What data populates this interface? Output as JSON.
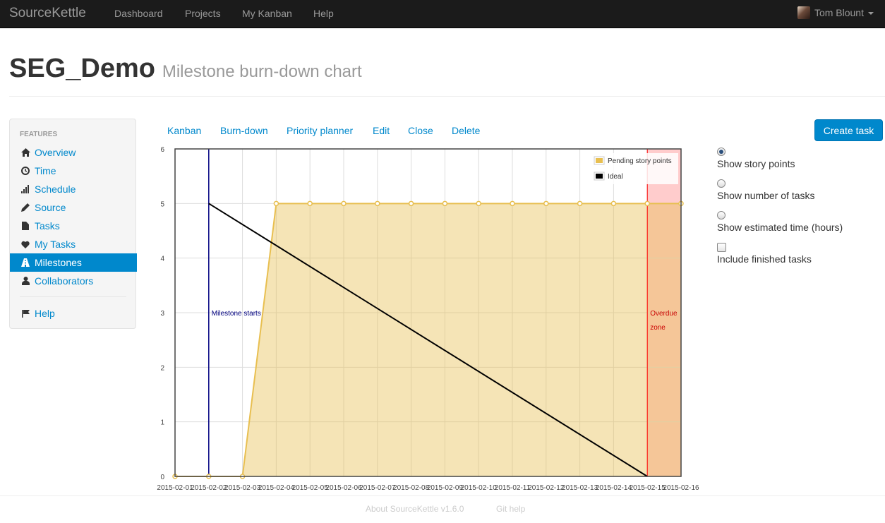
{
  "navbar": {
    "brand": "SourceKettle",
    "links": [
      "Dashboard",
      "Projects",
      "My Kanban",
      "Help"
    ],
    "user_name": "Tom Blount"
  },
  "page": {
    "project_name": "SEG_Demo",
    "subtitle": "Milestone burn-down chart"
  },
  "sidebar": {
    "header": "FEATURES",
    "items": [
      {
        "label": "Overview",
        "icon": "home-icon"
      },
      {
        "label": "Time",
        "icon": "clock-icon"
      },
      {
        "label": "Schedule",
        "icon": "signal-icon"
      },
      {
        "label": "Source",
        "icon": "pencil-icon"
      },
      {
        "label": "Tasks",
        "icon": "file-icon"
      },
      {
        "label": "My Tasks",
        "icon": "heart-icon"
      },
      {
        "label": "Milestones",
        "icon": "road-icon",
        "active": true
      },
      {
        "label": "Collaborators",
        "icon": "user-icon"
      },
      {
        "label": "Help",
        "icon": "flag-icon"
      }
    ]
  },
  "tabs": [
    "Kanban",
    "Burn-down",
    "Priority planner",
    "Edit",
    "Close",
    "Delete"
  ],
  "create_task_label": "Create task",
  "options": {
    "radios": [
      {
        "label": "Show story points",
        "checked": true
      },
      {
        "label": "Show number of tasks",
        "checked": false
      },
      {
        "label": "Show estimated time (hours)",
        "checked": false
      }
    ],
    "checkbox": {
      "label": "Include finished tasks",
      "checked": false
    }
  },
  "chart_data": {
    "type": "area",
    "x": [
      "2015-02-01",
      "2015-02-02",
      "2015-02-03",
      "2015-02-04",
      "2015-02-05",
      "2015-02-06",
      "2015-02-07",
      "2015-02-08",
      "2015-02-09",
      "2015-02-10",
      "2015-02-11",
      "2015-02-12",
      "2015-02-13",
      "2015-02-14",
      "2015-02-15",
      "2015-02-16"
    ],
    "series": [
      {
        "name": "Pending story points",
        "values": [
          0,
          0,
          0,
          5,
          5,
          5,
          5,
          5,
          5,
          5,
          5,
          5,
          5,
          5,
          5,
          5
        ],
        "color": "#e8bf50"
      },
      {
        "name": "Ideal",
        "points": [
          [
            "2015-02-02",
            5
          ],
          [
            "2015-02-15",
            0
          ]
        ],
        "color": "#000000"
      }
    ],
    "ylim": [
      0,
      6
    ],
    "yticks": [
      0,
      1,
      2,
      3,
      4,
      5,
      6
    ],
    "milestone_start": {
      "x": "2015-02-02",
      "label": "Milestone starts",
      "color": "#000080"
    },
    "overdue_zone": {
      "from": "2015-02-15",
      "to": "2015-02-16",
      "label_lines": [
        "Overdue",
        "zone"
      ],
      "color": "#ff0000"
    },
    "legend_position": "top-right",
    "grid": true
  },
  "footer": {
    "about": "About SourceKettle v1.6.0",
    "git_help": "Git help"
  }
}
